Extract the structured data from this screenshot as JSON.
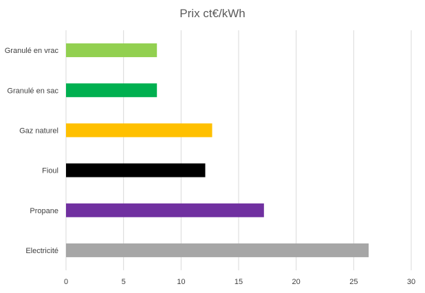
{
  "chart_data": {
    "type": "bar",
    "orientation": "horizontal",
    "title": "Prix ct€/kWh",
    "xlabel": "",
    "ylabel": "",
    "xlim": [
      0,
      30
    ],
    "xticks": [
      "0",
      "5",
      "10",
      "15",
      "20",
      "25",
      "30"
    ],
    "grid": true,
    "legend": "none",
    "categories": [
      "Granulé en vrac",
      "Granulé en sac",
      "Gaz naturel",
      "Fioul",
      "Propane",
      "Electricité"
    ],
    "values": [
      7.9,
      7.9,
      12.7,
      12.1,
      17.2,
      26.3
    ],
    "colors": [
      "#92D050",
      "#00B050",
      "#FFC000",
      "#000000",
      "#7030A0",
      "#A6A6A6"
    ],
    "gridline_color": "#D9D9D9"
  }
}
